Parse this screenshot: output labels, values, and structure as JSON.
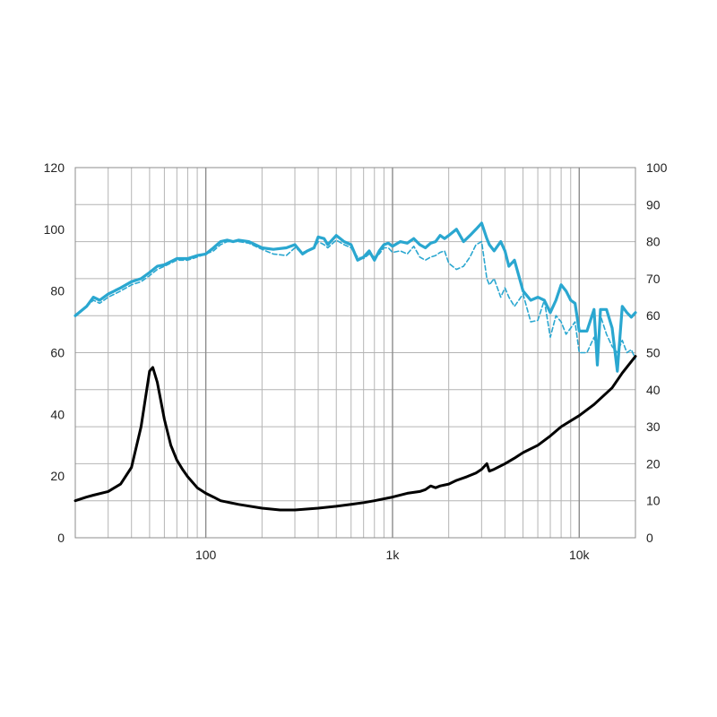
{
  "chart_data": {
    "type": "line",
    "title": "",
    "xlabel": "",
    "ylabel": "",
    "x_scale": "log",
    "xlim": [
      20,
      20000
    ],
    "ylim_left": [
      0,
      120
    ],
    "ylim_right": [
      0,
      100
    ],
    "y_ticks_left": [
      "0",
      "20",
      "40",
      "60",
      "80",
      "100",
      "120"
    ],
    "y_ticks_right": [
      "0",
      "10",
      "20",
      "30",
      "40",
      "50",
      "60",
      "70",
      "80",
      "90",
      "100"
    ],
    "x_tick_labels": [
      {
        "x": 100,
        "label": "100"
      },
      {
        "x": 1000,
        "label": "1k"
      },
      {
        "x": 10000,
        "label": "10k"
      }
    ],
    "grid": true,
    "legend": "none",
    "colors": {
      "response": "#2aa7d0",
      "impedance": "#000000",
      "grid": "#b4b4b4"
    },
    "series": [
      {
        "axis": "left",
        "style": "solid",
        "color": "#2aa7d0",
        "x": [
          20,
          23,
          25,
          27,
          30,
          35,
          40,
          45,
          50,
          55,
          60,
          70,
          80,
          90,
          100,
          110,
          120,
          130,
          140,
          150,
          170,
          200,
          230,
          270,
          300,
          330,
          350,
          380,
          400,
          430,
          450,
          500,
          550,
          600,
          650,
          700,
          750,
          800,
          850,
          900,
          950,
          1000,
          1100,
          1200,
          1300,
          1400,
          1500,
          1600,
          1700,
          1800,
          1900,
          2000,
          2200,
          2400,
          2600,
          2800,
          3000,
          3200,
          3300,
          3500,
          3800,
          4000,
          4200,
          4500,
          5000,
          5500,
          6000,
          6500,
          7000,
          7500,
          8000,
          8500,
          9000,
          9500,
          10000,
          11000,
          12000,
          12500,
          13000,
          14000,
          15000,
          16000,
          17000,
          18000,
          19000,
          20000
        ],
        "y": [
          72,
          75,
          78,
          77,
          79,
          81,
          83,
          84,
          86,
          88,
          88.5,
          90.5,
          90.5,
          91.5,
          92,
          94,
          96,
          96.5,
          96,
          96.5,
          96,
          94,
          93.5,
          94,
          95,
          92,
          93,
          94,
          97.5,
          97,
          95,
          98,
          96,
          95,
          90,
          91,
          93,
          90,
          93,
          95,
          95.5,
          94.5,
          96,
          95.5,
          97,
          95,
          94,
          95.5,
          96,
          98,
          97,
          98,
          100,
          96,
          98,
          100,
          102,
          97,
          95,
          93,
          96,
          93,
          88,
          90,
          80,
          77,
          78,
          77,
          73,
          77,
          82,
          80,
          77,
          76,
          67,
          67,
          74,
          56,
          74,
          74,
          68,
          54,
          75,
          73,
          71.5,
          73
        ]
      },
      {
        "axis": "left",
        "style": "dashed",
        "color": "#2aa7d0",
        "x": [
          20,
          23,
          25,
          27,
          30,
          35,
          40,
          45,
          50,
          55,
          60,
          70,
          80,
          90,
          100,
          110,
          120,
          130,
          140,
          150,
          170,
          200,
          230,
          270,
          300,
          330,
          350,
          380,
          400,
          430,
          450,
          500,
          550,
          600,
          650,
          700,
          750,
          800,
          850,
          900,
          950,
          1000,
          1100,
          1200,
          1300,
          1400,
          1500,
          1600,
          1700,
          1800,
          1900,
          2000,
          2200,
          2400,
          2600,
          2800,
          3000,
          3200,
          3300,
          3500,
          3800,
          4000,
          4200,
          4500,
          5000,
          5500,
          6000,
          6500,
          7000,
          7500,
          8000,
          8500,
          9000,
          9500,
          10000,
          11000,
          12000,
          12500,
          13000,
          14000,
          15000,
          16000,
          17000,
          18000,
          19000,
          20000
        ],
        "y": [
          72,
          75,
          77,
          76,
          78,
          80,
          82,
          83,
          85,
          87,
          88,
          90,
          90,
          91,
          92,
          93,
          95,
          96,
          96,
          96,
          95.5,
          93.5,
          92,
          91.5,
          94,
          92.5,
          93,
          94,
          96,
          95,
          94,
          96.5,
          95,
          94,
          91,
          90.5,
          92,
          91,
          92,
          94,
          94,
          92.5,
          93,
          92,
          94.5,
          91,
          90,
          91,
          91.5,
          92.5,
          93,
          89,
          87,
          88,
          91,
          95,
          96,
          84,
          82,
          84,
          78,
          81,
          78,
          75,
          79,
          70,
          70.5,
          77,
          65,
          72,
          70,
          66,
          68,
          70,
          60,
          60,
          65,
          60,
          72,
          66,
          62,
          60,
          64,
          60,
          61,
          58
        ]
      },
      {
        "axis": "right",
        "style": "solid",
        "color": "#000000",
        "x": [
          20,
          23,
          25,
          30,
          35,
          40,
          45,
          50,
          52,
          55,
          60,
          65,
          70,
          75,
          80,
          90,
          100,
          110,
          120,
          150,
          200,
          250,
          300,
          400,
          500,
          600,
          700,
          800,
          1000,
          1200,
          1400,
          1500,
          1600,
          1700,
          1800,
          2000,
          2200,
          2500,
          2800,
          3000,
          3200,
          3300,
          3500,
          4000,
          4500,
          5000,
          6000,
          7000,
          8000,
          10000,
          12000,
          15000,
          17000,
          20000
        ],
        "y": [
          10,
          11,
          11.5,
          12.5,
          14.5,
          19,
          30,
          45,
          46,
          42,
          32,
          25,
          21,
          18.5,
          16.5,
          13.5,
          12,
          11,
          10,
          9,
          8,
          7.5,
          7.5,
          8,
          8.5,
          9,
          9.5,
          10,
          11,
          12,
          12.5,
          13,
          14,
          13.5,
          14,
          14.5,
          15.5,
          16.5,
          17.5,
          18.5,
          20,
          18,
          18.5,
          20,
          21.5,
          23,
          25,
          27.5,
          30,
          33,
          36,
          40.5,
          44.5,
          49
        ]
      }
    ]
  }
}
